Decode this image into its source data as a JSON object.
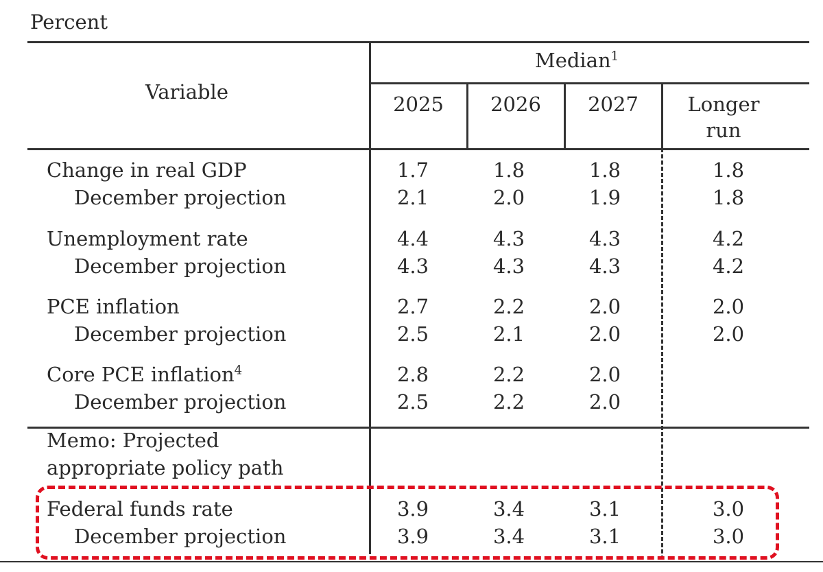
{
  "unit_label": "Percent",
  "header": {
    "variable_label": "Variable",
    "median_label": "Median",
    "median_footnote": "1",
    "years": [
      "2025",
      "2026",
      "2027"
    ],
    "longer_run_line1": "Longer",
    "longer_run_line2": "run"
  },
  "rows": [
    {
      "label": "Change in real GDP",
      "footnote": "",
      "values": [
        "1.7",
        "1.8",
        "1.8",
        "1.8"
      ]
    },
    {
      "label": "December projection",
      "values": [
        "2.1",
        "2.0",
        "1.9",
        "1.8"
      ]
    },
    {
      "label": "Unemployment rate",
      "footnote": "",
      "values": [
        "4.4",
        "4.3",
        "4.3",
        "4.2"
      ]
    },
    {
      "label": "December projection",
      "values": [
        "4.3",
        "4.3",
        "4.3",
        "4.2"
      ]
    },
    {
      "label": "PCE inflation",
      "footnote": "",
      "values": [
        "2.7",
        "2.2",
        "2.0",
        "2.0"
      ]
    },
    {
      "label": "December projection",
      "values": [
        "2.5",
        "2.1",
        "2.0",
        "2.0"
      ]
    },
    {
      "label": "Core PCE inflation",
      "footnote": "4",
      "values": [
        "2.8",
        "2.2",
        "2.0",
        ""
      ]
    },
    {
      "label": "December projection",
      "values": [
        "2.5",
        "2.2",
        "2.0",
        ""
      ]
    }
  ],
  "memo": {
    "line1": "Memo: Projected",
    "line2": "appropriate policy path"
  },
  "policy_rows": [
    {
      "label": "Federal funds rate",
      "values": [
        "3.9",
        "3.4",
        "3.1",
        "3.0"
      ]
    },
    {
      "label": "December projection",
      "values": [
        "3.9",
        "3.4",
        "3.1",
        "3.0"
      ]
    }
  ],
  "colors": {
    "highlight": "#e01020",
    "text": "#2a2a2a"
  }
}
